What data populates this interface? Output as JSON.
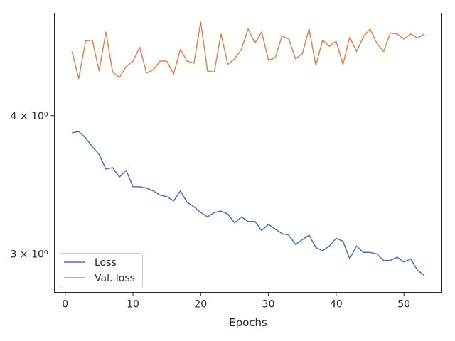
{
  "chart_data": {
    "type": "line",
    "xlabel": "Epochs",
    "ylabel": "",
    "yscale": "log",
    "xlim": [
      -1.6,
      55.6
    ],
    "ylim": [
      2.77,
      4.95
    ],
    "x_ticks": [
      0,
      10,
      20,
      30,
      40,
      50
    ],
    "y_ticks": [
      {
        "value": 3,
        "label": "3 × 10⁰"
      },
      {
        "value": 4,
        "label": "4 × 10⁰"
      }
    ],
    "grid": false,
    "legend_position": "lower-left",
    "series": [
      {
        "name": "Loss",
        "color": "#4c72b0",
        "x": [
          1,
          2,
          3,
          4,
          5,
          6,
          7,
          8,
          9,
          10,
          11,
          12,
          13,
          14,
          15,
          16,
          17,
          18,
          19,
          20,
          21,
          22,
          23,
          24,
          25,
          26,
          27,
          28,
          29,
          30,
          31,
          32,
          33,
          34,
          35,
          36,
          37,
          38,
          39,
          40,
          41,
          42,
          43,
          44,
          45,
          46,
          47,
          48,
          49,
          50,
          51,
          52,
          53
        ],
        "values": [
          3.86,
          3.87,
          3.82,
          3.75,
          3.69,
          3.58,
          3.59,
          3.52,
          3.57,
          3.45,
          3.45,
          3.44,
          3.42,
          3.39,
          3.38,
          3.35,
          3.42,
          3.34,
          3.31,
          3.27,
          3.24,
          3.27,
          3.28,
          3.26,
          3.2,
          3.24,
          3.21,
          3.21,
          3.15,
          3.19,
          3.16,
          3.13,
          3.12,
          3.06,
          3.09,
          3.12,
          3.04,
          3.02,
          3.05,
          3.1,
          3.08,
          2.97,
          3.05,
          3.01,
          3.01,
          3.0,
          2.96,
          2.96,
          2.98,
          2.95,
          2.97,
          2.9,
          2.87
        ]
      },
      {
        "name": "Val. loss",
        "color": "#dd8452",
        "x": [
          1,
          2,
          3,
          4,
          5,
          6,
          7,
          8,
          9,
          10,
          11,
          12,
          13,
          14,
          15,
          16,
          17,
          18,
          19,
          20,
          21,
          22,
          23,
          24,
          25,
          26,
          27,
          28,
          29,
          30,
          31,
          32,
          33,
          34,
          35,
          36,
          37,
          38,
          39,
          40,
          41,
          42,
          43,
          44,
          45,
          46,
          47,
          48,
          49,
          50,
          51,
          52,
          53
        ],
        "values": [
          4.57,
          4.32,
          4.67,
          4.68,
          4.39,
          4.76,
          4.38,
          4.33,
          4.43,
          4.48,
          4.61,
          4.37,
          4.4,
          4.48,
          4.48,
          4.36,
          4.59,
          4.48,
          4.46,
          4.86,
          4.39,
          4.38,
          4.74,
          4.45,
          4.5,
          4.59,
          4.79,
          4.65,
          4.76,
          4.49,
          4.51,
          4.72,
          4.69,
          4.5,
          4.55,
          4.79,
          4.44,
          4.68,
          4.62,
          4.67,
          4.45,
          4.71,
          4.57,
          4.71,
          4.79,
          4.65,
          4.57,
          4.75,
          4.74,
          4.69,
          4.74,
          4.7,
          4.74
        ]
      }
    ]
  }
}
